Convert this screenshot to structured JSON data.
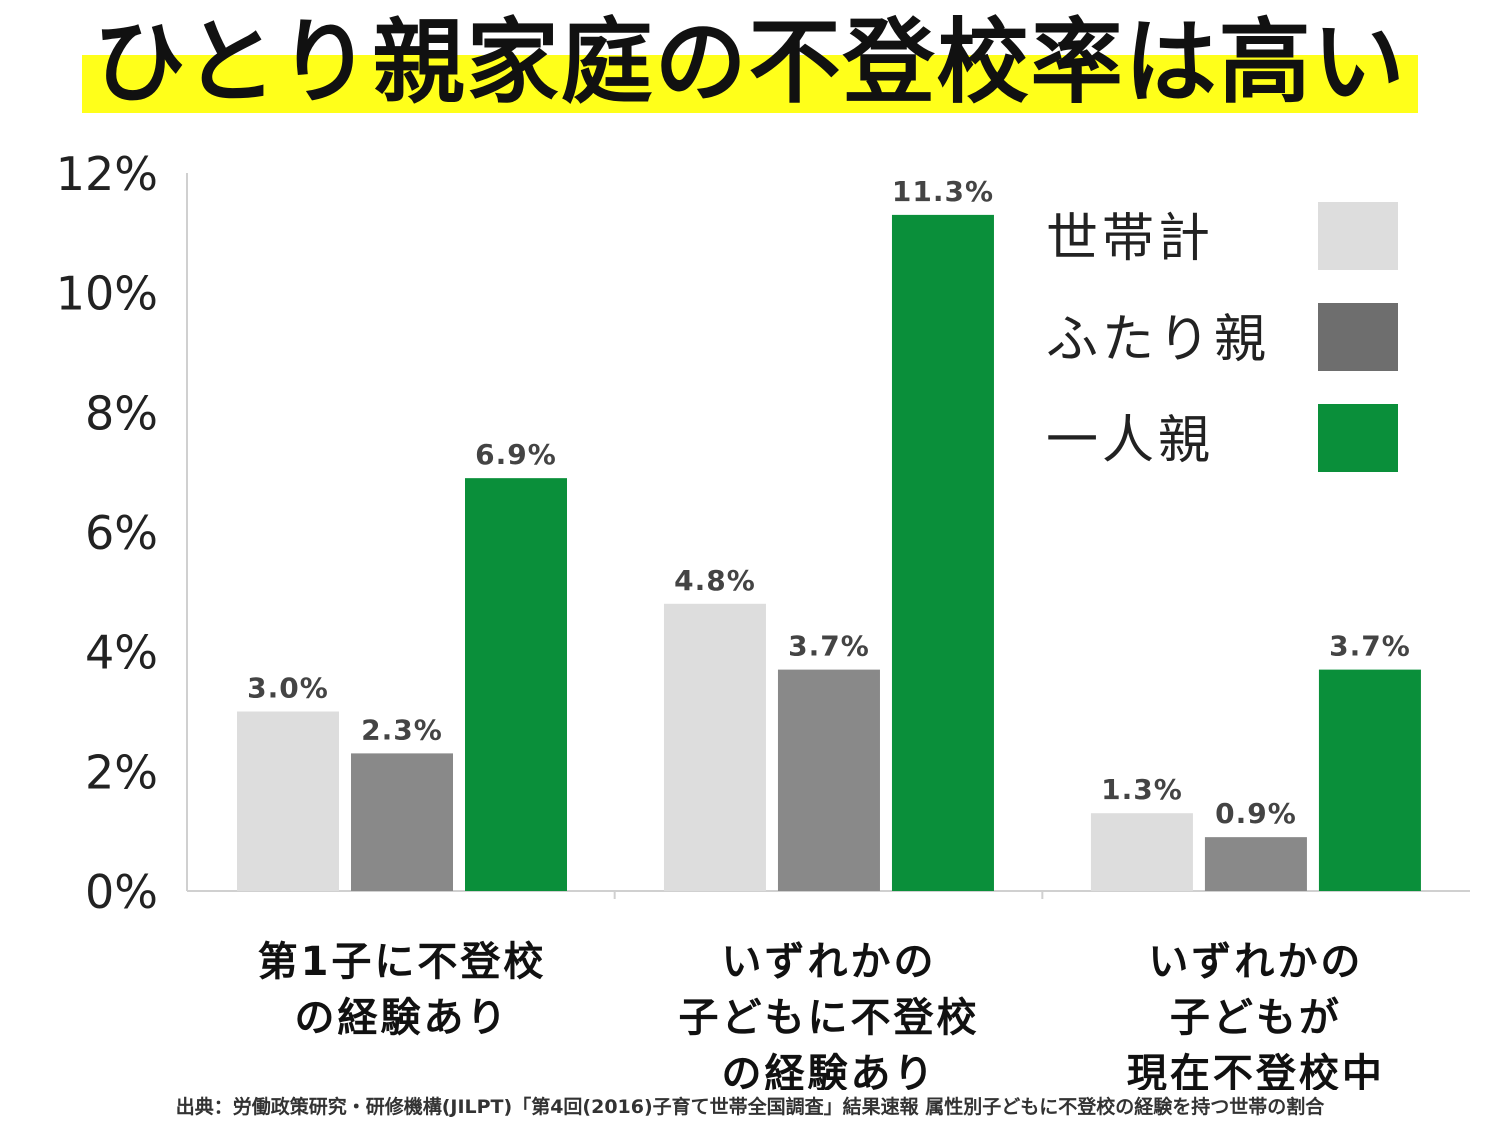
{
  "title": "ひとり親家庭の不登校率は高い",
  "source": "出典：労働政策研究・研修機構(JILPT)「第4回(2016)子育て世帯全国調査」結果速報 属性別子どもに不登校の経験を持つ世帯の割合",
  "colors": {
    "title_highlight": "#ffff1a",
    "series": [
      "#dddddd",
      "#898989",
      "#0a8f3a"
    ]
  },
  "chart_data": {
    "type": "bar",
    "title": "ひとり親家庭の不登校率は高い",
    "ylim": [
      0,
      12
    ],
    "y_tick_labels": [
      "0%",
      "2%",
      "4%",
      "6%",
      "8%",
      "10%",
      "12%"
    ],
    "y_tick_values": [
      0,
      2,
      4,
      6,
      8,
      10,
      12
    ],
    "grid": false,
    "legend_position": "top-right",
    "categories": [
      [
        "第1子に不登校",
        "の経験あり"
      ],
      [
        "いずれかの",
        "子どもに不登校",
        "の経験あり"
      ],
      [
        "いずれかの",
        "子どもが",
        "現在不登校中"
      ]
    ],
    "series": [
      {
        "name": "世帯計",
        "color": "#dddddd",
        "values": [
          3.0,
          4.8,
          1.3
        ],
        "labels": [
          "3.0%",
          "4.8%",
          "1.3%"
        ]
      },
      {
        "name": "ふたり親",
        "color": "#898989",
        "values": [
          2.3,
          3.7,
          0.9
        ],
        "labels": [
          "2.3%",
          "3.7%",
          "0.9%"
        ]
      },
      {
        "name": "一人親",
        "color": "#0a8f3a",
        "values": [
          6.9,
          11.3,
          3.7
        ],
        "labels": [
          "6.9%",
          "11.3%",
          "3.7%"
        ]
      }
    ],
    "legend_swatch_colors": [
      "#dddddd",
      "#6e6e6e",
      "#0a8f3a"
    ]
  }
}
